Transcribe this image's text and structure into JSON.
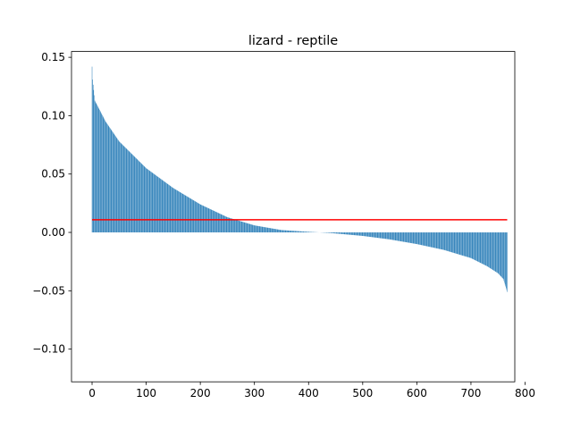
{
  "chart_data": {
    "type": "bar",
    "title": "lizard - reptile",
    "xlabel": "",
    "ylabel": "",
    "xlim": [
      -38,
      781
    ],
    "ylim": [
      -0.128,
      0.155
    ],
    "x_ticks": [
      0,
      100,
      200,
      300,
      400,
      500,
      600,
      700,
      800
    ],
    "x_tick_labels": [
      "0",
      "100",
      "200",
      "300",
      "400",
      "500",
      "600",
      "700",
      "800"
    ],
    "y_ticks": [
      -0.1,
      -0.05,
      0.0,
      0.05,
      0.1,
      0.15
    ],
    "y_tick_labels": [
      "−0.10",
      "−0.05",
      "0.00",
      "0.05",
      "0.10",
      "0.15"
    ],
    "bar_count": 768,
    "bar_width": 0.8,
    "bar_color": "#1f77b4",
    "value_profile": {
      "description": "sorted descending values",
      "anchor_index": [
        0,
        1,
        5,
        25,
        50,
        100,
        150,
        200,
        250,
        300,
        350,
        400,
        420,
        440,
        500,
        550,
        600,
        650,
        700,
        730,
        750,
        760,
        767
      ],
      "anchor_value": [
        0.142,
        0.131,
        0.113,
        0.095,
        0.078,
        0.055,
        0.038,
        0.024,
        0.013,
        0.006,
        0.002,
        0.0005,
        0.0,
        -0.0005,
        -0.003,
        -0.006,
        -0.01,
        -0.015,
        -0.022,
        -0.029,
        -0.035,
        -0.04,
        -0.051
      ]
    },
    "reference_line": {
      "y": 0.0108,
      "x_start": 0,
      "x_end": 767,
      "color": "#ff0000"
    },
    "grid": false,
    "legend": "none"
  }
}
